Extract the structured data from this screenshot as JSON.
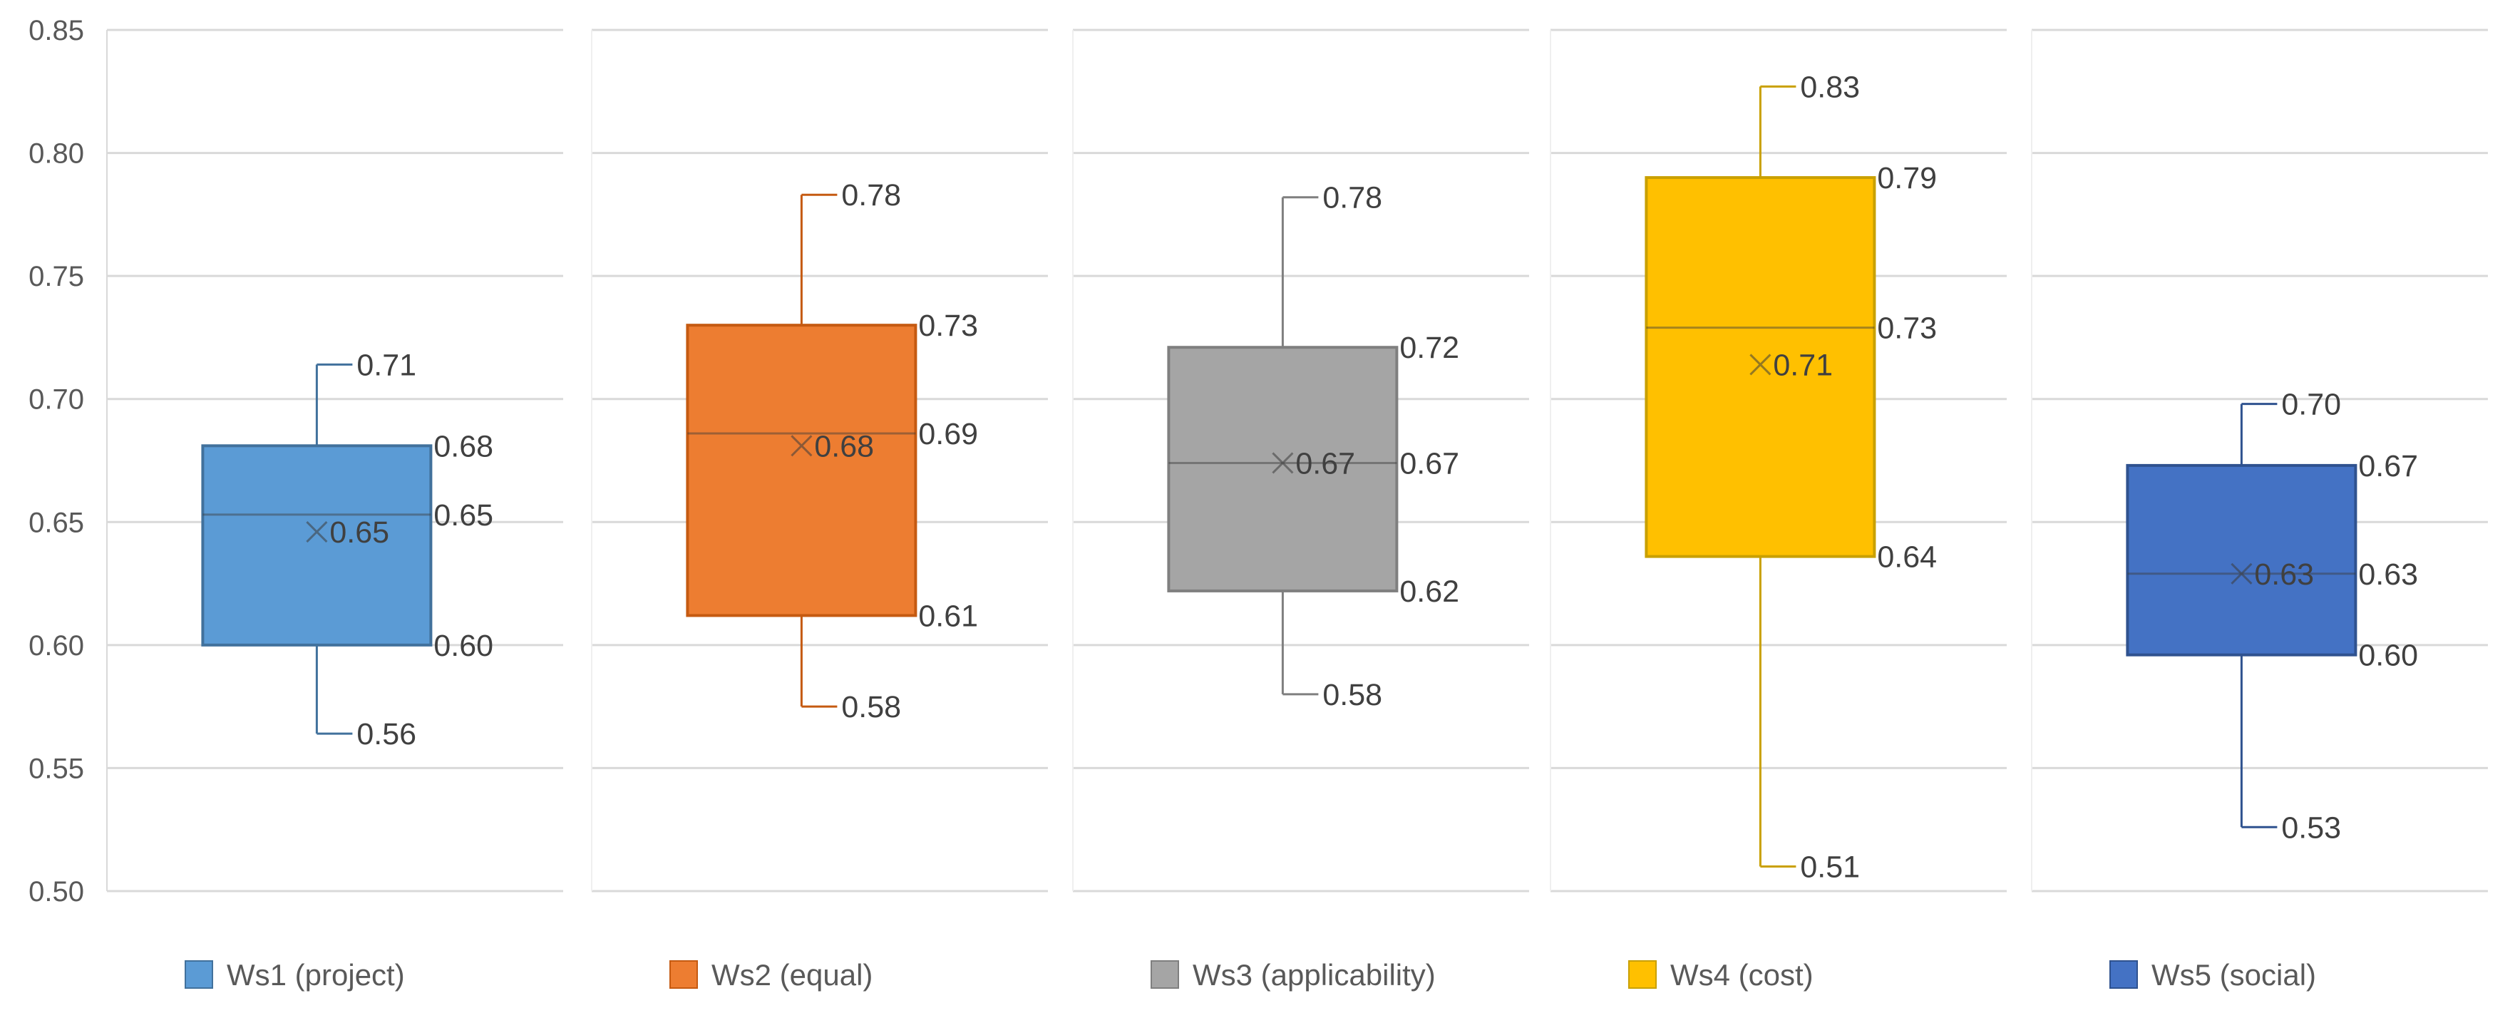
{
  "chart_data": {
    "type": "boxplot",
    "title": "",
    "xlabel": "",
    "ylabel": "",
    "ylim": [
      0.5,
      0.85
    ],
    "yticks": [
      "0.50",
      "0.55",
      "0.60",
      "0.65",
      "0.70",
      "0.75",
      "0.80",
      "0.85"
    ],
    "grid": true,
    "legend_position": "bottom",
    "series": [
      {
        "name": "Ws1 (project)",
        "color": "#5B9BD5",
        "edge": "#41719C",
        "min": 0.564,
        "q1": 0.6,
        "median": 0.653,
        "mean": 0.646,
        "q3": 0.681,
        "max": 0.714,
        "labels": {
          "min": "0.56",
          "q1": "0.60",
          "median": "0.65",
          "mean": "0.65",
          "q3": "0.68",
          "max": "0.71"
        }
      },
      {
        "name": "Ws2 (equal)",
        "color": "#ED7D31",
        "edge": "#C55A11",
        "min": 0.575,
        "q1": 0.612,
        "median": 0.686,
        "mean": 0.681,
        "q3": 0.73,
        "max": 0.783,
        "labels": {
          "min": "0.58",
          "q1": "0.61",
          "median": "0.69",
          "mean": "0.68",
          "q3": "0.73",
          "max": "0.78"
        }
      },
      {
        "name": "Ws3 (applicability)",
        "color": "#A5A5A5",
        "edge": "#7F7F7F",
        "min": 0.58,
        "q1": 0.622,
        "median": 0.674,
        "mean": 0.674,
        "q3": 0.721,
        "max": 0.782,
        "labels": {
          "min": "0.58",
          "q1": "0.62",
          "median": "0.67",
          "mean": "0.67",
          "q3": "0.72",
          "max": "0.78"
        }
      },
      {
        "name": "Ws4 (cost)",
        "color": "#FFC000",
        "edge": "#C9A000",
        "min": 0.51,
        "q1": 0.636,
        "median": 0.729,
        "mean": 0.714,
        "q3": 0.79,
        "max": 0.827,
        "labels": {
          "min": "0.51",
          "q1": "0.64",
          "median": "0.73",
          "mean": "0.71",
          "q3": "0.79",
          "max": "0.83"
        }
      },
      {
        "name": "Ws5 (social)",
        "color": "#4472C4",
        "edge": "#2F528F",
        "min": 0.526,
        "q1": 0.596,
        "median": 0.629,
        "mean": 0.629,
        "q3": 0.673,
        "max": 0.698,
        "labels": {
          "min": "0.53",
          "q1": "0.60",
          "median": "0.63",
          "mean": "0.63",
          "q3": "0.67",
          "max": "0.70"
        }
      }
    ]
  }
}
